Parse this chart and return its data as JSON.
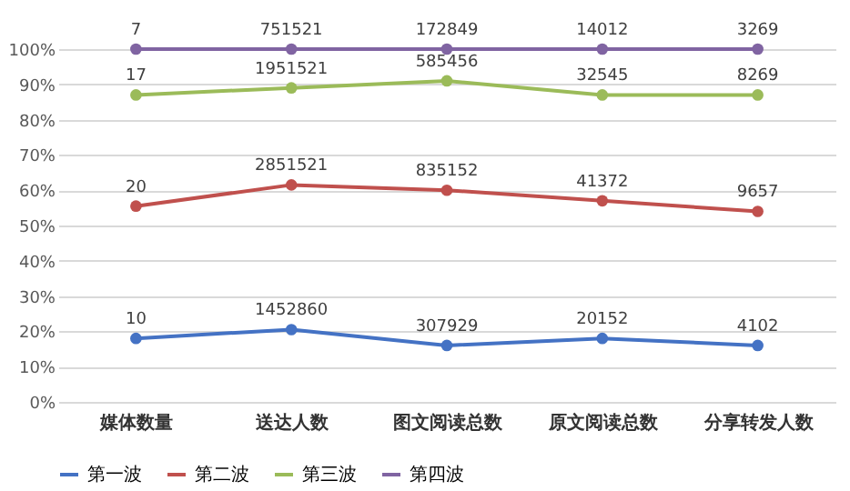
{
  "chart_data": {
    "type": "line",
    "categories": [
      "媒体数量",
      "送达人数",
      "图文阅读总数",
      "原文阅读总数",
      "分享转发人数"
    ],
    "ylim": [
      0,
      100
    ],
    "yticks": [
      {
        "value": 0,
        "label": "0%"
      },
      {
        "value": 10,
        "label": "10%"
      },
      {
        "value": 20,
        "label": "20%"
      },
      {
        "value": 30,
        "label": "30%"
      },
      {
        "value": 40,
        "label": "40%"
      },
      {
        "value": 50,
        "label": "50%"
      },
      {
        "value": 60,
        "label": "60%"
      },
      {
        "value": 70,
        "label": "70%"
      },
      {
        "value": 80,
        "label": "80%"
      },
      {
        "value": 90,
        "label": "90%"
      },
      {
        "value": 100,
        "label": "100%"
      }
    ],
    "grid": "y",
    "legend": "bottom",
    "marker": "circle",
    "line_style": "solid",
    "series": [
      {
        "name": "第一波",
        "color": "#4472c4",
        "values": [
          18,
          20.5,
          16,
          18,
          16
        ]
      },
      {
        "name": "第二波",
        "color": "#c0504d",
        "values": [
          55.5,
          61.5,
          60,
          57,
          54
        ]
      },
      {
        "name": "第三波",
        "color": "#9bbb59",
        "values": [
          87,
          89,
          91,
          87,
          87
        ]
      },
      {
        "name": "第四波",
        "color": "#8064a2",
        "values": [
          100,
          100,
          100,
          100,
          100
        ]
      }
    ],
    "annotations": [
      {
        "text": "10",
        "x": "媒体数量",
        "y": 18
      },
      {
        "text": "1452860",
        "x": "送达人数",
        "y": 20.5
      },
      {
        "text": "307929",
        "x": "图文阅读总数",
        "y": 16
      },
      {
        "text": "20152",
        "x": "原文阅读总数",
        "y": 18
      },
      {
        "text": "4102",
        "x": "分享转发人数",
        "y": 16
      },
      {
        "text": "20",
        "x": "媒体数量",
        "y": 55.5
      },
      {
        "text": "2851521",
        "x": "送达人数",
        "y": 61.5
      },
      {
        "text": "835152",
        "x": "图文阅读总数",
        "y": 60
      },
      {
        "text": "41372",
        "x": "原文阅读总数",
        "y": 57
      },
      {
        "text": "9657",
        "x": "分享转发人数",
        "y": 54
      },
      {
        "text": "17",
        "x": "媒体数量",
        "y": 87
      },
      {
        "text": "1951521",
        "x": "送达人数",
        "y": 89
      },
      {
        "text": "585456",
        "x": "图文阅读总数",
        "y": 91
      },
      {
        "text": "32545",
        "x": "原文阅读总数",
        "y": 87
      },
      {
        "text": "8269",
        "x": "分享转发人数",
        "y": 87
      },
      {
        "text": "7",
        "x": "媒体数量",
        "y": 100
      },
      {
        "text": "751521",
        "x": "送达人数",
        "y": 100
      },
      {
        "text": "172849",
        "x": "图文阅读总数",
        "y": 100
      },
      {
        "text": "14012",
        "x": "原文阅读总数",
        "y": 100
      },
      {
        "text": "3269",
        "x": "分享转发人数",
        "y": 100
      }
    ]
  }
}
